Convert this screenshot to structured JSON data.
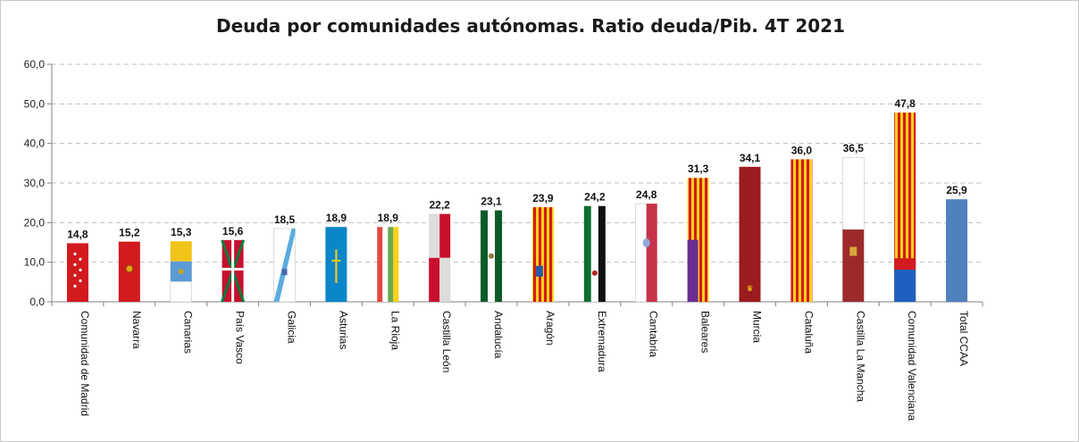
{
  "chart_data": {
    "type": "bar",
    "title": "Deuda por comunidades autónomas. Ratio deuda/Pib. 4T 2021",
    "xlabel": "",
    "ylabel": "",
    "ylim": [
      0,
      60
    ],
    "yticks": [
      "0,0",
      "10,0",
      "20,0",
      "30,0",
      "40,0",
      "50,0",
      "60,0"
    ],
    "grid": true,
    "categories": [
      "Comunidad de Madrid",
      "Navarra",
      "Canarias",
      "País Vasco",
      "Galicia",
      "Asturias",
      "La Rioja",
      "Castilla León",
      "Andalucía",
      "Aragón",
      "Extremadura",
      "Cantabria",
      "Baleares",
      "Murcia",
      "Cataluña",
      "Castilla La Mancha",
      "Comunidad Valenciana",
      "Total CCAA"
    ],
    "values": [
      14.8,
      15.2,
      15.3,
      15.6,
      18.5,
      18.9,
      18.9,
      22.2,
      23.1,
      23.9,
      24.2,
      24.8,
      31.3,
      34.1,
      36.0,
      36.5,
      47.8,
      25.9
    ],
    "value_labels": [
      "14,8",
      "15,2",
      "15,3",
      "15,6",
      "18,5",
      "18,9",
      "18,9",
      "22,2",
      "23,1",
      "23,9",
      "24,2",
      "24,8",
      "31,3",
      "34,1",
      "36,0",
      "36,5",
      "47,8",
      "25,9"
    ],
    "bar_styles": [
      "madrid",
      "navarra",
      "canarias",
      "paisvasco",
      "galicia",
      "asturias",
      "larioja",
      "castillaleon",
      "andalucia",
      "aragon",
      "extremadura",
      "cantabria",
      "baleares",
      "murcia",
      "cataluna",
      "castillalamancha",
      "valenciana",
      "total"
    ]
  },
  "colors": {
    "red": "#d21a1f",
    "yellow": "#fcd116",
    "total": "#4f81bd",
    "grid": "#c0c0c0",
    "axis": "#808080"
  }
}
